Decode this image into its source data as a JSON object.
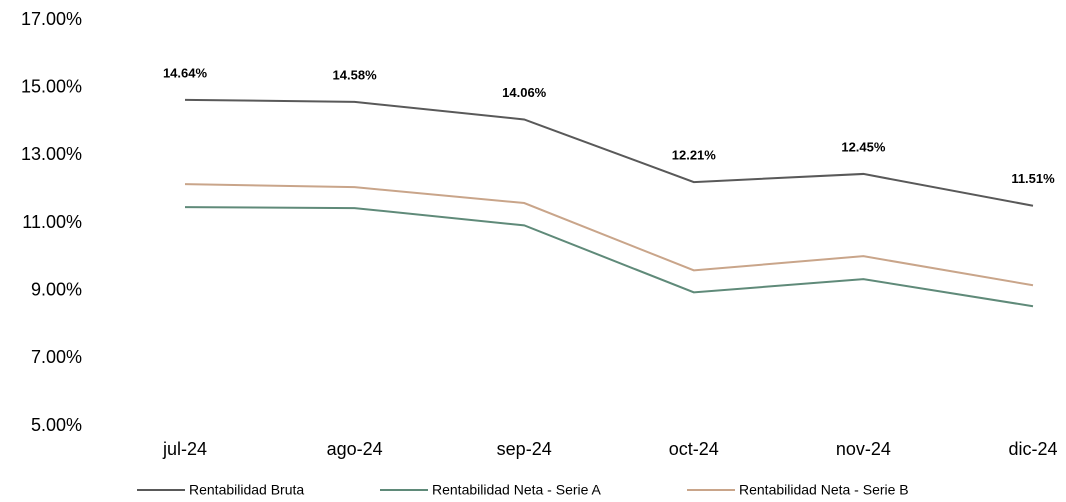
{
  "chart_data": {
    "type": "line",
    "categories": [
      "jul-24",
      "ago-24",
      "sep-24",
      "oct-24",
      "nov-24",
      "dic-24"
    ],
    "series": [
      {
        "name": "Rentabilidad Bruta",
        "color": "#595959",
        "values": [
          14.64,
          14.58,
          14.06,
          12.21,
          12.45,
          11.51
        ],
        "value_labels": [
          "14.64%",
          "14.58%",
          "14.06%",
          "12.21%",
          "12.45%",
          "11.51%"
        ]
      },
      {
        "name": "Rentabilidad Neta - Serie A",
        "color": "#5f8a79",
        "values": [
          11.47,
          11.44,
          10.93,
          8.95,
          9.34,
          8.54
        ]
      },
      {
        "name": "Rentabilidad Neta - Serie B",
        "color": "#c9a58a",
        "values": [
          12.15,
          12.06,
          11.59,
          9.6,
          10.02,
          9.16
        ]
      }
    ],
    "ylim": [
      5,
      17
    ],
    "yticks": [
      {
        "value": 5,
        "label": "5.00%"
      },
      {
        "value": 7,
        "label": "7.00%"
      },
      {
        "value": 9,
        "label": "9.00%"
      },
      {
        "value": 11,
        "label": "11.00%"
      },
      {
        "value": 13,
        "label": "13.00%"
      },
      {
        "value": 15,
        "label": "15.00%"
      },
      {
        "value": 17,
        "label": "17.00%"
      }
    ],
    "grid": false,
    "legend": "bottom"
  }
}
